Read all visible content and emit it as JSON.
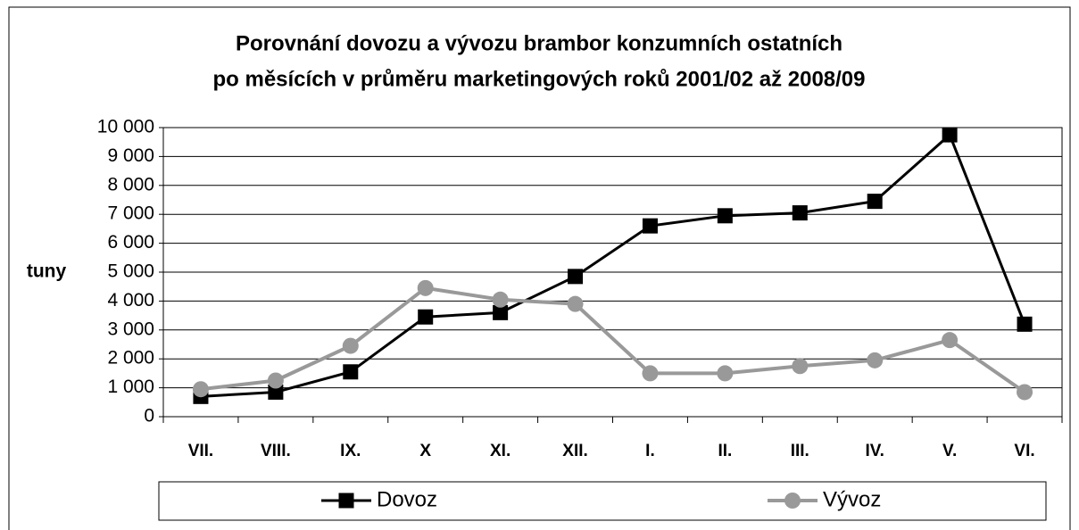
{
  "chart_data": {
    "type": "line",
    "title": [
      "Porovnání dovozu a vývozu brambor konzumních ostatních",
      "po měsících v průměru marketingových roků 2001/02 až 2008/09"
    ],
    "y_label": "tuny",
    "categories": [
      "VII.",
      "VIII.",
      "IX.",
      "X",
      "XI.",
      "XII.",
      "I.",
      "II.",
      "III.",
      "IV.",
      "V.",
      "VI."
    ],
    "series": [
      {
        "name": "Dovoz",
        "color": "#000000",
        "marker": "square",
        "values": [
          700,
          850,
          1550,
          3450,
          3600,
          4850,
          6600,
          6950,
          7050,
          7450,
          9750,
          3200
        ]
      },
      {
        "name": "Vývoz",
        "color": "#999999",
        "marker": "circle",
        "values": [
          950,
          1250,
          2450,
          4450,
          4050,
          3900,
          1500,
          1500,
          1750,
          1950,
          2650,
          850
        ]
      }
    ],
    "ylim": [
      0,
      10000
    ],
    "yticks": [
      0,
      {
        "value": 1000,
        "label": "1 000"
      },
      {
        "value": 2000,
        "label": "2 000"
      },
      {
        "value": 3000,
        "label": "3 000"
      },
      {
        "value": 4000,
        "label": "4 000"
      },
      {
        "value": 5000,
        "label": "5 000"
      },
      {
        "value": 6000,
        "label": "6 000"
      },
      {
        "value": 7000,
        "label": "7 000"
      },
      {
        "value": 8000,
        "label": "8 000"
      },
      {
        "value": 9000,
        "label": "9 000"
      },
      {
        "value": 10000,
        "label": "10 000"
      }
    ],
    "grid": true,
    "legend": "bottom"
  }
}
